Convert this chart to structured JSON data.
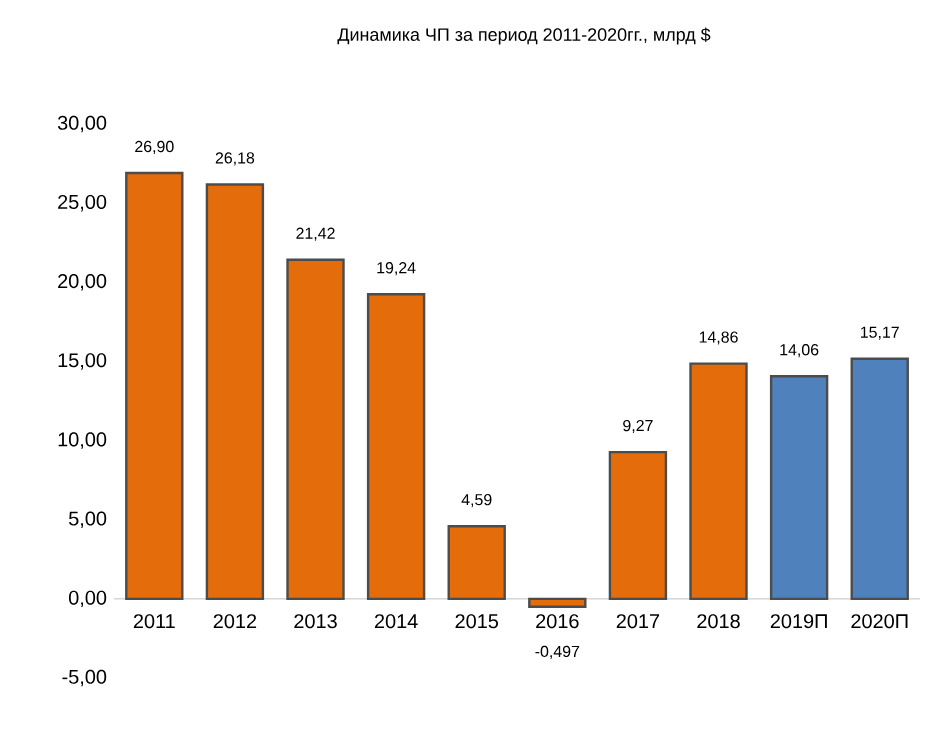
{
  "chart_data": {
    "type": "bar",
    "title": "Динамика ЧП за период 2011-2020гг., млрд $",
    "categories": [
      "2011",
      "2012",
      "2013",
      "2014",
      "2015",
      "2016",
      "2017",
      "2018",
      "2019П",
      "2020П"
    ],
    "values": [
      26.9,
      26.18,
      21.42,
      19.24,
      4.59,
      -0.497,
      9.27,
      14.86,
      14.06,
      15.17
    ],
    "colors": [
      "#e46c0a",
      "#e46c0a",
      "#e46c0a",
      "#e46c0a",
      "#e46c0a",
      "#e46c0a",
      "#e46c0a",
      "#e46c0a",
      "#4f81bd",
      "#4f81bd"
    ],
    "value_labels": [
      "26,90",
      "26,18",
      "21,42",
      "19,24",
      "4,59",
      "-0,497",
      "9,27",
      "14,86",
      "14,06",
      "15,17"
    ],
    "ylim": [
      -5,
      30
    ],
    "yticks": [
      {
        "value": -5,
        "label": "-5,00"
      },
      {
        "value": 0,
        "label": "0,00"
      },
      {
        "value": 5,
        "label": "5,00"
      },
      {
        "value": 10,
        "label": "10,00"
      },
      {
        "value": 15,
        "label": "15,00"
      },
      {
        "value": 20,
        "label": "20,00"
      },
      {
        "value": 25,
        "label": "25,00"
      },
      {
        "value": 30,
        "label": "30,00"
      }
    ],
    "relative": false
  }
}
